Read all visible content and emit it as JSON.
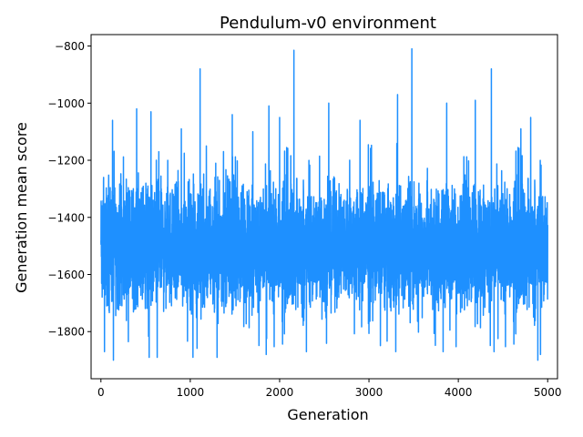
{
  "chart_data": {
    "type": "line",
    "title": "Pendulum-v0 environment",
    "xlabel": "Generation",
    "ylabel": "Generation mean score",
    "xlim": [
      -110,
      5110
    ],
    "ylim": [
      -1965,
      -760
    ],
    "x_ticks": [
      0,
      1000,
      2000,
      3000,
      4000,
      5000
    ],
    "x_tick_labels": [
      "0",
      "1000",
      "2000",
      "3000",
      "4000",
      "5000"
    ],
    "y_ticks": [
      -1800,
      -1600,
      -1400,
      -1200,
      -1000,
      -800
    ],
    "y_tick_labels": [
      "−1800",
      "−1600",
      "−1400",
      "−1200",
      "−1000",
      "−800"
    ],
    "grid": false,
    "legend": "none",
    "line_color": "#1e90ff",
    "series": [
      {
        "x_start": 0,
        "x_end": 5000,
        "points": 5001,
        "center": -1500,
        "typical_range": [
          -1700,
          -1320
        ],
        "peaks": [
          {
            "x": 30,
            "y": -1260
          },
          {
            "x": 130,
            "y": -1060
          },
          {
            "x": 400,
            "y": -1020
          },
          {
            "x": 560,
            "y": -1030
          },
          {
            "x": 620,
            "y": -1200
          },
          {
            "x": 900,
            "y": -1090
          },
          {
            "x": 1110,
            "y": -880
          },
          {
            "x": 1180,
            "y": -1150
          },
          {
            "x": 1470,
            "y": -1040
          },
          {
            "x": 1700,
            "y": -1100
          },
          {
            "x": 1880,
            "y": -1010
          },
          {
            "x": 2000,
            "y": -1050
          },
          {
            "x": 2160,
            "y": -815
          },
          {
            "x": 2550,
            "y": -1000
          },
          {
            "x": 2900,
            "y": -1060
          },
          {
            "x": 3320,
            "y": -970
          },
          {
            "x": 3480,
            "y": -810
          },
          {
            "x": 3870,
            "y": -1000
          },
          {
            "x": 4190,
            "y": -990
          },
          {
            "x": 4370,
            "y": -880
          },
          {
            "x": 4700,
            "y": -1090
          },
          {
            "x": 4810,
            "y": -1050
          }
        ],
        "troughs": [
          {
            "x": 40,
            "y": -1870
          },
          {
            "x": 140,
            "y": -1900
          },
          {
            "x": 540,
            "y": -1890
          },
          {
            "x": 630,
            "y": -1890
          },
          {
            "x": 1030,
            "y": -1890
          },
          {
            "x": 1300,
            "y": -1890
          },
          {
            "x": 1850,
            "y": -1880
          },
          {
            "x": 2300,
            "y": -1870
          },
          {
            "x": 3300,
            "y": -1870
          },
          {
            "x": 3830,
            "y": -1870
          },
          {
            "x": 4400,
            "y": -1870
          },
          {
            "x": 4890,
            "y": -1900
          },
          {
            "x": 4920,
            "y": -1880
          }
        ]
      }
    ]
  }
}
